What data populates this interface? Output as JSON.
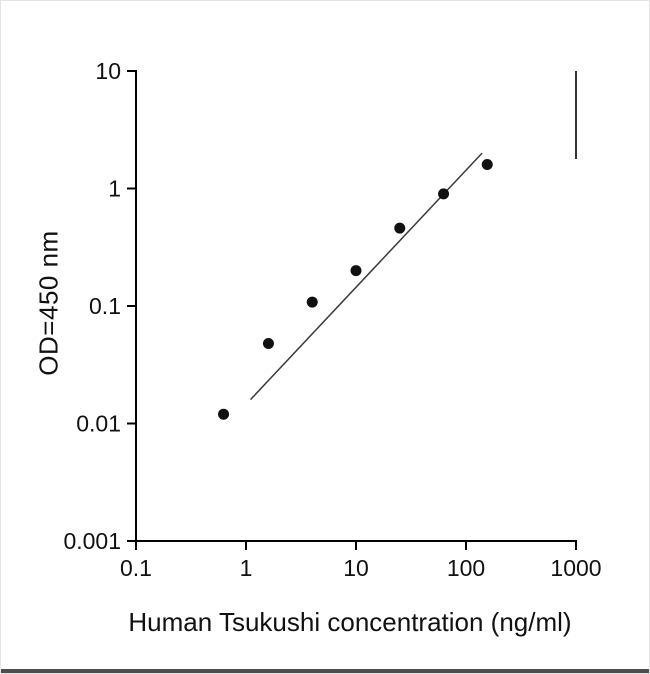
{
  "chart_data": {
    "type": "scatter",
    "title": "",
    "xlabel": "Human Tsukushi concentration (ng/ml)",
    "ylabel": "OD=450 nm",
    "x_scale": "log",
    "y_scale": "log",
    "xlim": [
      0.1,
      1000
    ],
    "ylim": [
      0.001,
      10
    ],
    "x": [
      0.625,
      1.6,
      4,
      10,
      25,
      62.5,
      156
    ],
    "y": [
      0.012,
      0.048,
      0.108,
      0.2,
      0.46,
      0.9,
      1.6
    ],
    "fit_line": {
      "x": [
        1.1,
        140
      ],
      "y": [
        0.016,
        2.0
      ]
    },
    "x_ticks": [
      "0.1",
      "1",
      "10",
      "100",
      "1000"
    ],
    "y_ticks": [
      "10",
      "1",
      "0.1",
      "0.01",
      "0.001"
    ],
    "grid": false,
    "legend": false,
    "marker": {
      "shape": "circle",
      "color": "#111111",
      "radius": 5.5
    },
    "line_color": "#3a3a3a",
    "axis_color": "#000000"
  }
}
